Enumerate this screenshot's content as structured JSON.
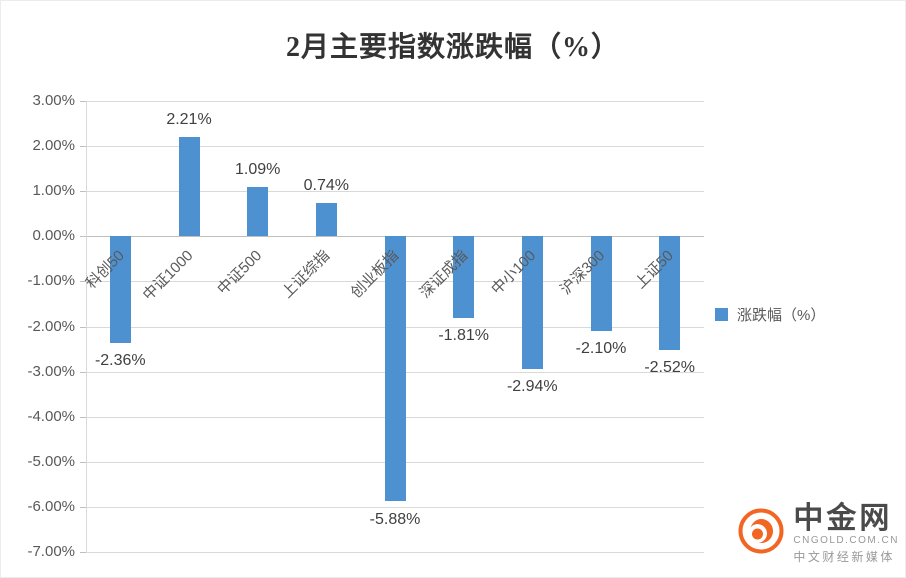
{
  "title": "2月主要指数涨跌幅（%）",
  "legend": {
    "label": "涨跌幅（%）"
  },
  "watermark": {
    "brand": "中金网",
    "domain": "CNGOLD.COM.CN",
    "tagline": "中文财经新媒体"
  },
  "colors": {
    "bar": "#4e91d0",
    "grid": "#d9d9d9",
    "axis_text": "#595959",
    "data_label_text": "#404040",
    "logo_orange": "#f26522"
  },
  "chart_data": {
    "type": "bar",
    "title": "2月主要指数涨跌幅（%）",
    "categories": [
      "科创50",
      "中证1000",
      "中证500",
      "上证综指",
      "创业板指",
      "深证成指",
      "中小100",
      "沪深300",
      "上证50"
    ],
    "values": [
      -2.36,
      2.21,
      1.09,
      0.74,
      -5.88,
      -1.81,
      -2.94,
      -2.1,
      -2.52
    ],
    "data_labels": [
      "-2.36%",
      "2.21%",
      "1.09%",
      "0.74%",
      "-5.88%",
      "-1.81%",
      "-2.94%",
      "-2.10%",
      "-2.52%"
    ],
    "series_name": "涨跌幅（%）",
    "ylim": [
      -7,
      3
    ],
    "ytick_step": 1,
    "ytick_labels": [
      "3.00%",
      "2.00%",
      "1.00%",
      "0.00%",
      "-1.00%",
      "-2.00%",
      "-3.00%",
      "-4.00%",
      "-5.00%",
      "-6.00%",
      "-7.00%"
    ],
    "grid": true,
    "legend_position": "right",
    "xlabel": "",
    "ylabel": ""
  }
}
